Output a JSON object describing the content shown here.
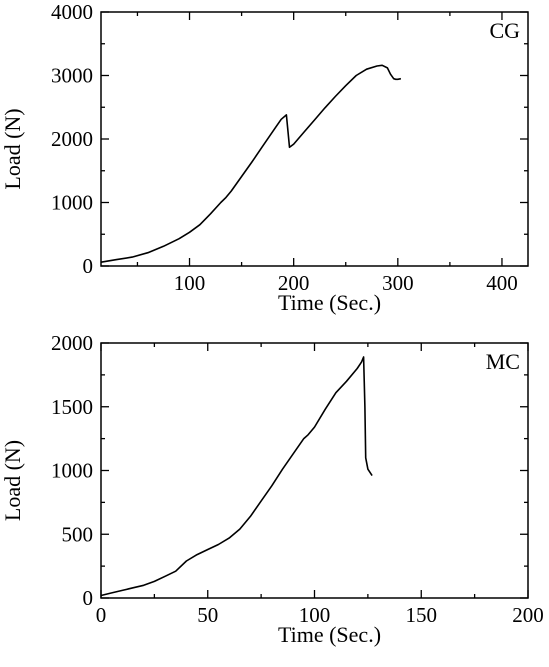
{
  "chart_data": [
    {
      "type": "line",
      "panel_label": "CG",
      "xlabel": "Time (Sec.)",
      "ylabel": "Load (N)",
      "xlim": [
        15,
        425
      ],
      "ylim": [
        0,
        4000
      ],
      "xticks": [
        100,
        200,
        300,
        400
      ],
      "yticks": [
        0,
        1000,
        2000,
        3000,
        4000
      ],
      "xminor": [
        50,
        150,
        250,
        350
      ],
      "yminor": [
        500,
        1500,
        2500,
        3500
      ],
      "grid": false,
      "series": [
        {
          "x": [
            15,
            30,
            45,
            60,
            75,
            90,
            100,
            110,
            120,
            130,
            135,
            140,
            150,
            160,
            170,
            180,
            188,
            193,
            196,
            200,
            210,
            220,
            230,
            240,
            250,
            260,
            270,
            280,
            285,
            290,
            293,
            296,
            298,
            300,
            303
          ],
          "y": [
            60,
            100,
            140,
            210,
            310,
            430,
            530,
            650,
            820,
            1000,
            1080,
            1180,
            1410,
            1640,
            1880,
            2120,
            2310,
            2380,
            1870,
            1920,
            2110,
            2300,
            2490,
            2670,
            2840,
            3000,
            3100,
            3150,
            3160,
            3120,
            3020,
            2950,
            2940,
            2940,
            2950
          ]
        }
      ]
    },
    {
      "type": "line",
      "panel_label": "MC",
      "xlabel": "Time (Sec.)",
      "ylabel": "Load (N)",
      "xlim": [
        0,
        200
      ],
      "ylim": [
        0,
        2000
      ],
      "xticks": [
        0,
        50,
        100,
        150,
        200
      ],
      "yticks": [
        0,
        500,
        1000,
        1500,
        2000
      ],
      "xminor": [
        25,
        75,
        125,
        175
      ],
      "yminor": [
        250,
        750,
        1250,
        1750
      ],
      "grid": false,
      "series": [
        {
          "x": [
            0,
            5,
            10,
            15,
            20,
            25,
            30,
            35,
            40,
            45,
            50,
            55,
            60,
            65,
            70,
            75,
            80,
            85,
            90,
            95,
            97,
            100,
            105,
            110,
            115,
            120,
            122,
            123,
            123.6,
            124,
            125,
            127
          ],
          "y": [
            20,
            40,
            60,
            80,
            100,
            130,
            170,
            210,
            290,
            340,
            380,
            420,
            470,
            540,
            640,
            760,
            880,
            1010,
            1130,
            1250,
            1280,
            1340,
            1480,
            1610,
            1700,
            1800,
            1850,
            1890,
            1500,
            1100,
            1010,
            960
          ]
        }
      ]
    }
  ]
}
